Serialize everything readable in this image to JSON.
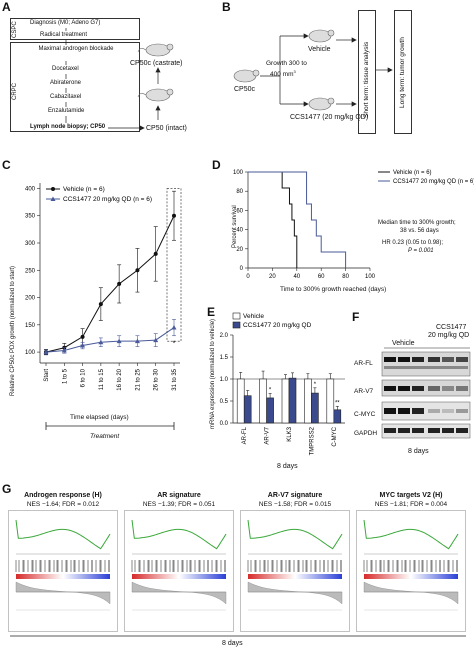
{
  "panels": {
    "A": {
      "label": "A",
      "cspc": "CSPC",
      "crpc": "CRPC",
      "steps": [
        "Diagnosis (M0; Adeno G7)",
        "Radical treatment",
        "Maximal androgen blockade",
        "Docetaxel",
        "Abiraterone",
        "Cabazitaxel",
        "Enzalutamide",
        "Lymph node biopsy; CP50"
      ],
      "castrate": "CP50c (castrate)",
      "intact": "CP50 (intact)"
    },
    "B": {
      "label": "B",
      "source": "CP50c",
      "growth": "Growth 300 to",
      "growth2": "400 mm",
      "growth_sup": "3",
      "vehicle": "Vehicle",
      "drug": "CCS1477 (20 mg/kg QD)",
      "short_term": "Short term: tissue analysis",
      "long_term": "Long term: tumor growth"
    },
    "C": {
      "label": "C",
      "ylabel": "Relative CP50c PDX growth (normalized to start)",
      "xlabel": "Time elapsed (days)",
      "treatment": "Treatment",
      "star": "*"
    },
    "D": {
      "label": "D",
      "ylabel": "Percent survival",
      "xlabel": "Time to 300% growth reached (days)",
      "median": "Median time to 300% growth;",
      "median2": "38 vs. 56 days",
      "hr": "HR 0.23 (0.05 to 0.98);",
      "p": "P = 0.001"
    },
    "E": {
      "label": "E",
      "ylabel": "mRNA expression (normalized to vehicle)",
      "days": "8 days",
      "stars": [
        "",
        "*",
        "",
        "*",
        "**"
      ]
    },
    "F": {
      "label": "F",
      "vehicle": "Vehicle",
      "drug": "CCS1477",
      "drug_dose": "20 mg/kg QD",
      "bands": [
        "AR-FL",
        "AR-V7",
        "C-MYC",
        "GAPDH"
      ],
      "days": "8 days"
    },
    "G": {
      "label": "G",
      "days": "8 days",
      "plots": [
        {
          "title": "Androgen response (H)",
          "stats": "NES −1.64; FDR = 0.012"
        },
        {
          "title": "AR signature",
          "stats": "NES −1.39; FDR = 0.051"
        },
        {
          "title": "AR-V7 signature",
          "stats": "NES −1.58; FDR = 0.015"
        },
        {
          "title": "MYC targets V2 (H)",
          "stats": "NES −1.81; FDR = 0.004"
        }
      ]
    }
  },
  "chart_data": [
    {
      "panel": "C",
      "type": "line",
      "categories": [
        "Start",
        "1 to 5",
        "6 to 10",
        "11 to 15",
        "16 to 20",
        "21 to 25",
        "26 to 30",
        "31 to 35"
      ],
      "series": [
        {
          "name": "Vehicle (n = 6)",
          "values": [
            100,
            108,
            128,
            188,
            225,
            250,
            280,
            350
          ],
          "err": [
            5,
            8,
            15,
            30,
            35,
            40,
            50,
            45
          ]
        },
        {
          "name": "CCS1477 20 mg/kg QD (n = 6)",
          "values": [
            100,
            103,
            112,
            118,
            120,
            120,
            122,
            145
          ],
          "err": [
            4,
            5,
            6,
            8,
            10,
            10,
            12,
            15
          ]
        }
      ],
      "yticks": [
        100,
        150,
        200,
        250,
        300,
        350,
        400
      ],
      "ylim": [
        80,
        410
      ]
    },
    {
      "panel": "D",
      "type": "line",
      "series": [
        {
          "name": "Vehicle (n = 6)",
          "steps": [
            [
              0,
              100
            ],
            [
              28,
              100
            ],
            [
              28,
              83.3
            ],
            [
              34,
              83.3
            ],
            [
              34,
              66.7
            ],
            [
              36,
              66.7
            ],
            [
              36,
              50
            ],
            [
              38,
              50
            ],
            [
              38,
              33.3
            ],
            [
              40,
              33.3
            ],
            [
              40,
              0
            ]
          ]
        },
        {
          "name": "CCS1477 20 mg/kg QD (n = 6)",
          "steps": [
            [
              0,
              100
            ],
            [
              48,
              100
            ],
            [
              48,
              66.7
            ],
            [
              52,
              66.7
            ],
            [
              52,
              50
            ],
            [
              56,
              50
            ],
            [
              56,
              33.3
            ],
            [
              60,
              33.3
            ],
            [
              60,
              16.7
            ],
            [
              80,
              16.7
            ],
            [
              80,
              0
            ]
          ]
        }
      ],
      "xticks": [
        0,
        20,
        40,
        60,
        80,
        100
      ],
      "yticks": [
        0,
        20,
        40,
        60,
        80,
        100
      ],
      "xlim": [
        0,
        100
      ],
      "ylim": [
        0,
        100
      ]
    },
    {
      "panel": "E",
      "type": "bar",
      "categories": [
        "AR-FL",
        "AR-V7",
        "KLK3",
        "TMPRSS2",
        "C-MYC"
      ],
      "series": [
        {
          "name": "Vehicle",
          "values": [
            1.0,
            1.0,
            1.0,
            1.0,
            1.0
          ],
          "err": [
            0.15,
            0.18,
            0.1,
            0.12,
            0.12
          ]
        },
        {
          "name": "CCS1477 20 mg/kg QD",
          "values": [
            0.62,
            0.57,
            1.02,
            0.68,
            0.3
          ],
          "err": [
            0.12,
            0.1,
            0.12,
            0.12,
            0.08
          ]
        }
      ],
      "yticks": [
        0.0,
        0.5,
        1.0,
        1.5,
        2.0
      ],
      "ylim": [
        0,
        2.0
      ]
    }
  ]
}
